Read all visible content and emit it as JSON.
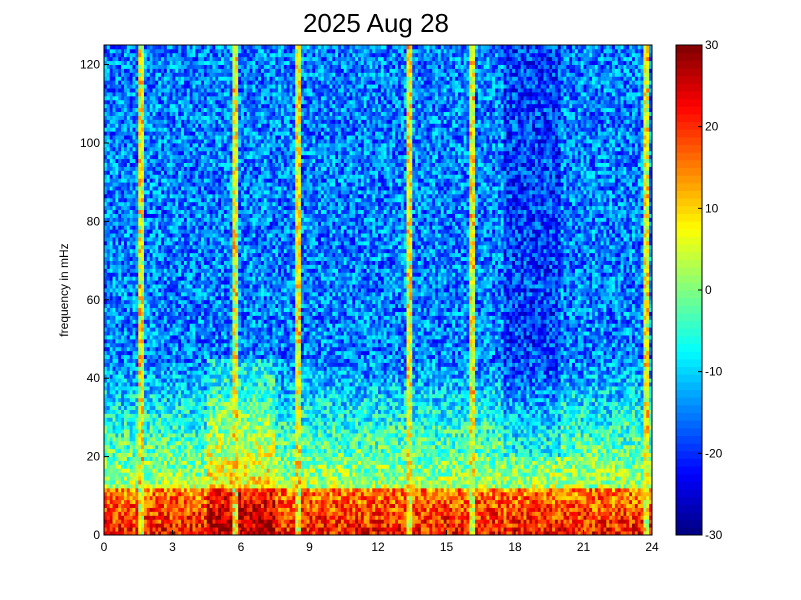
{
  "chart_data": {
    "type": "heatmap",
    "title": "2025 Aug 28",
    "xlabel": "",
    "ylabel": "frequency in mHz",
    "xlim": [
      0,
      24
    ],
    "ylim": [
      0,
      125
    ],
    "x_ticks": [
      0,
      3,
      6,
      9,
      12,
      15,
      18,
      21,
      24
    ],
    "y_ticks": [
      0,
      20,
      40,
      60,
      80,
      100,
      120
    ],
    "colorbar": {
      "range": [
        -30,
        30
      ],
      "ticks": [
        30,
        20,
        10,
        0,
        -10,
        -20,
        -30
      ],
      "colormap": "jet"
    },
    "grid": false,
    "features": {
      "vertical_streak_hours": [
        1.6,
        5.7,
        8.5,
        13.4,
        16.1,
        23.7
      ],
      "low_frequency_band_mhz": [
        0,
        12
      ],
      "low_frequency_level": 22,
      "background_level_high_freq": -15
    }
  },
  "colors": {
    "background": "#ffffff",
    "axis": "#000000"
  }
}
